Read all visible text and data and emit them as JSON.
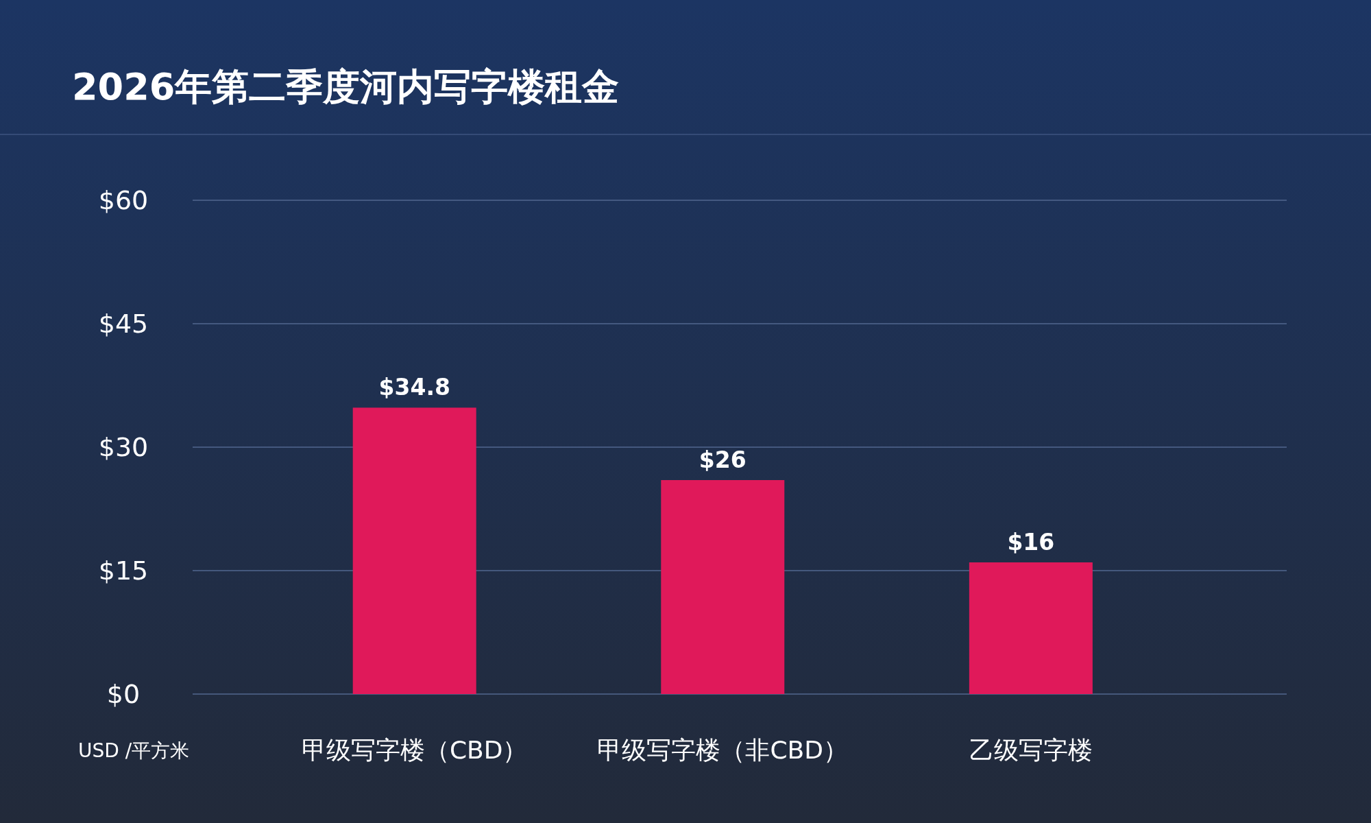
{
  "chart_data": {
    "type": "bar",
    "title": "2026年第二季度河内写字楼租金",
    "ylabel": "USD /平方米",
    "categories": [
      "甲级写字楼（CBD）",
      "甲级写字楼（非CBD）",
      "乙级写字楼"
    ],
    "values": [
      34.8,
      26,
      16
    ],
    "color": "#e0195a",
    "value_labels": [
      "$34.8",
      "$26",
      "$16"
    ],
    "ylim": [
      0,
      60
    ],
    "yticks": [
      {
        "value": 0,
        "label": "$0"
      },
      {
        "value": 15,
        "label": "$15"
      },
      {
        "value": 30,
        "label": "$30"
      },
      {
        "value": 45,
        "label": "$45"
      },
      {
        "value": 60,
        "label": "$60"
      }
    ],
    "grid": "y"
  }
}
